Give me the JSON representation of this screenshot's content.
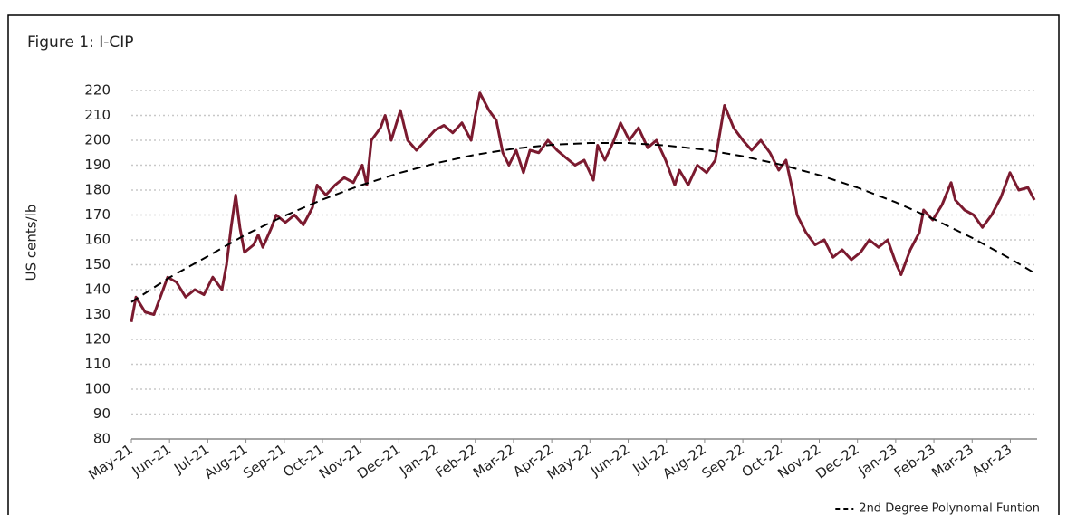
{
  "chart_data": {
    "type": "line",
    "title": "Figure 1: I-CIP",
    "ylabel": "US cents/lb",
    "xlim": [
      0,
      23.7
    ],
    "ylim": [
      80,
      220
    ],
    "yticks": [
      80,
      90,
      100,
      110,
      120,
      130,
      140,
      150,
      160,
      170,
      180,
      190,
      200,
      210,
      220
    ],
    "xticks": [
      {
        "value": 0,
        "label": "May-21"
      },
      {
        "value": 1,
        "label": "Jun-21"
      },
      {
        "value": 2,
        "label": "Jul-21"
      },
      {
        "value": 3,
        "label": "Aug-21"
      },
      {
        "value": 4,
        "label": "Sep-21"
      },
      {
        "value": 5,
        "label": "Oct-21"
      },
      {
        "value": 6,
        "label": "Nov-21"
      },
      {
        "value": 7,
        "label": "Dec-21"
      },
      {
        "value": 8,
        "label": "Jan-22"
      },
      {
        "value": 9,
        "label": "Feb-22"
      },
      {
        "value": 10,
        "label": "Mar-22"
      },
      {
        "value": 11,
        "label": "Apr-22"
      },
      {
        "value": 12,
        "label": "May-22"
      },
      {
        "value": 13,
        "label": "Jun-22"
      },
      {
        "value": 14,
        "label": "Jul-22"
      },
      {
        "value": 15,
        "label": "Aug-22"
      },
      {
        "value": 16,
        "label": "Sep-22"
      },
      {
        "value": 17,
        "label": "Oct-22"
      },
      {
        "value": 18,
        "label": "Nov-22"
      },
      {
        "value": 19,
        "label": "Dec-22"
      },
      {
        "value": 20,
        "label": "Jan-23"
      },
      {
        "value": 21,
        "label": "Feb-23"
      },
      {
        "value": 22,
        "label": "Mar-23"
      },
      {
        "value": 23,
        "label": "Apr-23"
      }
    ],
    "grid": true,
    "legend": "bottom-right",
    "series": [
      {
        "color": "#7b1a2f",
        "x": [
          0,
          0.12,
          0.36,
          0.59,
          0.83,
          0.95,
          1.18,
          1.42,
          1.66,
          1.9,
          2.13,
          2.37,
          2.49,
          2.61,
          2.73,
          2.84,
          2.96,
          3.2,
          3.32,
          3.44,
          3.67,
          3.79,
          4.03,
          4.27,
          4.5,
          4.74,
          4.86,
          5.09,
          5.33,
          5.57,
          5.81,
          6.04,
          6.16,
          6.28,
          6.52,
          6.64,
          6.8,
          7.04,
          7.23,
          7.46,
          7.7,
          7.94,
          8.18,
          8.41,
          8.65,
          8.89,
          9.0,
          9.12,
          9.36,
          9.55,
          9.72,
          9.88,
          10.07,
          10.26,
          10.43,
          10.66,
          10.9,
          11.14,
          11.37,
          11.61,
          11.85,
          12.09,
          12.2,
          12.39,
          12.63,
          12.8,
          13.03,
          13.27,
          13.51,
          13.74,
          13.98,
          14.22,
          14.34,
          14.57,
          14.81,
          15.05,
          15.28,
          15.52,
          15.76,
          16.0,
          16.23,
          16.47,
          16.71,
          16.94,
          17.13,
          17.3,
          17.42,
          17.65,
          17.89,
          18.13,
          18.36,
          18.6,
          18.84,
          19.08,
          19.31,
          19.55,
          19.79,
          20.02,
          20.14,
          20.38,
          20.62,
          20.73,
          20.97,
          21.21,
          21.45,
          21.56,
          21.8,
          22.04,
          22.27,
          22.51,
          22.75,
          22.99,
          23.22,
          23.46,
          23.63
        ],
        "values": [
          127,
          137,
          131,
          130,
          140,
          145,
          143,
          137,
          140,
          138,
          145,
          140,
          150,
          165,
          178,
          165,
          155,
          158,
          162,
          157,
          165,
          170,
          167,
          170,
          166,
          173,
          182,
          178,
          182,
          185,
          183,
          190,
          182,
          200,
          205,
          210,
          200,
          212,
          200,
          196,
          200,
          204,
          206,
          203,
          207,
          200,
          210,
          219,
          212,
          208,
          195,
          190,
          196,
          187,
          196,
          195,
          200,
          196,
          193,
          190,
          192,
          184,
          198,
          192,
          200,
          207,
          200,
          205,
          197,
          200,
          192,
          182,
          188,
          182,
          190,
          187,
          192,
          214,
          205,
          200,
          196,
          200,
          195,
          188,
          192,
          180,
          170,
          163,
          158,
          160,
          153,
          156,
          152,
          155,
          160,
          157,
          160,
          150,
          146,
          156,
          163,
          172,
          168,
          174,
          183,
          176,
          172,
          170,
          165,
          170,
          177,
          187,
          180,
          181,
          176
        ]
      },
      {
        "name": "2nd Degree Polynomal Funtion",
        "color": "#000000",
        "dashed": true,
        "x": [
          0,
          1,
          2,
          3,
          4,
          5,
          6,
          7,
          8,
          9,
          10,
          11,
          12,
          13,
          14,
          15,
          16,
          17,
          18,
          19,
          20,
          21,
          22,
          23,
          23.63
        ],
        "values": [
          135,
          144.9,
          153.4,
          162.2,
          169.6,
          176.2,
          181.9,
          186.8,
          190.9,
          194.2,
          196.6,
          198.2,
          198.9,
          198.9,
          197.9,
          196.2,
          193.6,
          190.2,
          186,
          181,
          175.1,
          168.3,
          160.8,
          152.4,
          146.7
        ]
      }
    ]
  }
}
